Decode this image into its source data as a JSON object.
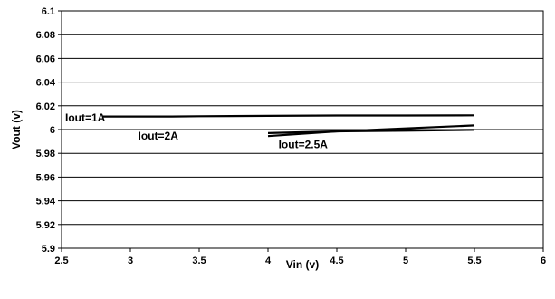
{
  "chart_data": {
    "type": "line",
    "title": "",
    "xlabel": "Vin (v)",
    "ylabel": "Vout (v)",
    "xlim": [
      2.5,
      6
    ],
    "ylim": [
      5.9,
      6.1
    ],
    "xticks": [
      2.5,
      3,
      3.5,
      4,
      4.5,
      5,
      5.5,
      6
    ],
    "xtick_labels": [
      "2.5",
      "3",
      "3.5",
      "4",
      "4.5",
      "5",
      "5.5",
      "6"
    ],
    "yticks": [
      5.9,
      5.92,
      5.94,
      5.96,
      5.98,
      6,
      6.02,
      6.04,
      6.06,
      6.08,
      6.1
    ],
    "ytick_labels": [
      "5.9",
      "5.92",
      "5.94",
      "5.96",
      "5.98",
      "6",
      "6.02",
      "6.04",
      "6.06",
      "6.08",
      "6.1"
    ],
    "grid": "horizontal",
    "legend": "none",
    "series": [
      {
        "name": "Iout=1A",
        "x": [
          2.8,
          3.3,
          3.5,
          4,
          4.5,
          5,
          5.5
        ],
        "y": [
          6.011,
          6.011,
          6.0112,
          6.0115,
          6.0118,
          6.0118,
          6.012
        ],
        "label_anchor": {
          "x": 2.5,
          "y": 6.007
        }
      },
      {
        "name": "Iout=2A",
        "x": [
          4,
          4.5,
          5,
          5.5
        ],
        "y": [
          5.9945,
          5.9985,
          6.001,
          6.0035
        ],
        "label_anchor": {
          "x": 3.03,
          "y": 5.9915
        }
      },
      {
        "name": "Iout=2.5A",
        "x": [
          4,
          4.5,
          5,
          5.5
        ],
        "y": [
          5.997,
          5.9985,
          5.999,
          5.9998
        ],
        "label_anchor": {
          "x": 4.05,
          "y": 5.9845
        }
      }
    ],
    "colors": {
      "line": "#000000",
      "grid": "#000000",
      "background": "#ffffff"
    }
  }
}
